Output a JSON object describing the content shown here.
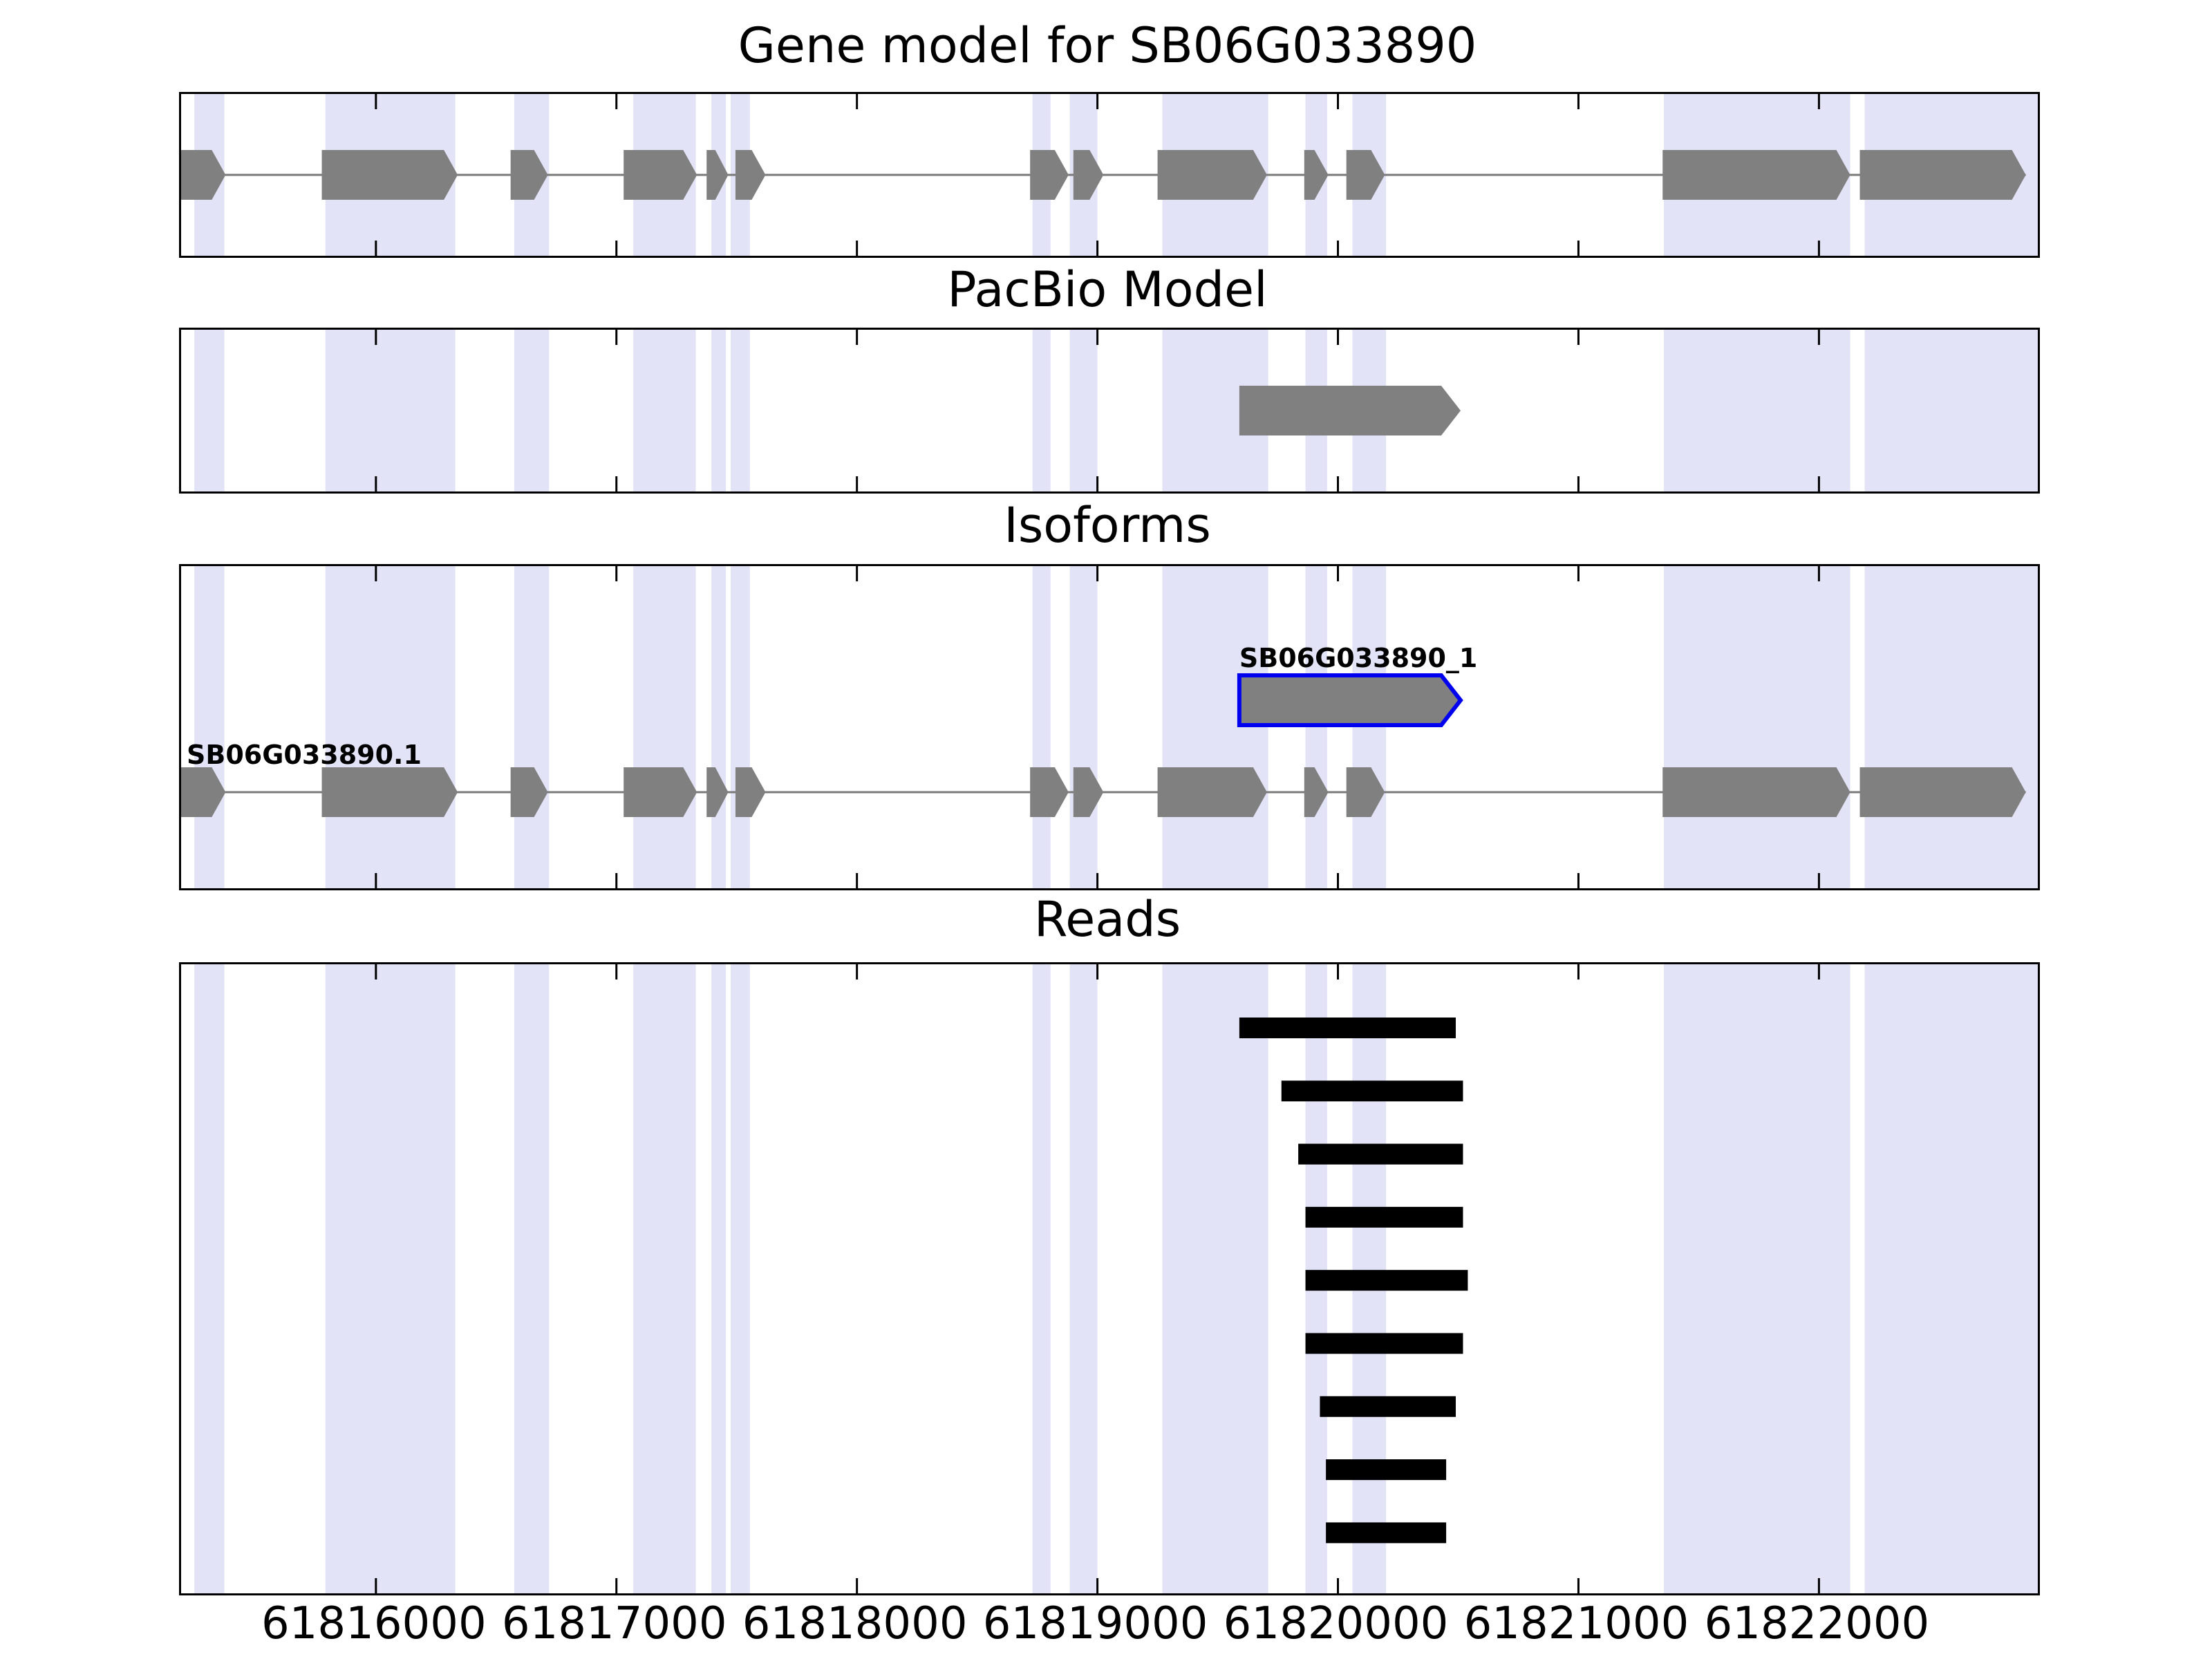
{
  "colors": {
    "feature_fill": "#808080",
    "intron_line": "#7a7a7a",
    "highlight_stroke": "#0000ee",
    "read_fill": "#000000",
    "stripe_fill": "#e3e3f7",
    "panel_border": "#000000",
    "text": "#000000"
  },
  "chart_data": {
    "type": "genome-tracks",
    "x_axis": {
      "min": 61815190,
      "max": 61822910,
      "ticks": [
        61816000,
        61817000,
        61818000,
        61819000,
        61820000,
        61821000,
        61822000
      ],
      "tick_labels": [
        "61816000",
        "61817000",
        "61818000",
        "61819000",
        "61820000",
        "61821000",
        "61822000"
      ]
    },
    "highlight_regions": [
      [
        61815245,
        61815370
      ],
      [
        61815790,
        61816330
      ],
      [
        61816575,
        61816720
      ],
      [
        61817070,
        61817330
      ],
      [
        61817395,
        61817455
      ],
      [
        61817475,
        61817555
      ],
      [
        61818730,
        61818805
      ],
      [
        61818885,
        61819000
      ],
      [
        61819270,
        61819710
      ],
      [
        61819865,
        61819955
      ],
      [
        61820060,
        61820200
      ],
      [
        61821355,
        61822130
      ],
      [
        61822190,
        61822910
      ]
    ],
    "panels": [
      {
        "id": "gene-model",
        "title": "Gene model for SB06G033890"
      },
      {
        "id": "pacbio",
        "title": "PacBio Model"
      },
      {
        "id": "isoforms",
        "title": "Isoforms"
      },
      {
        "id": "reads",
        "title": "Reads"
      }
    ],
    "gene_model": {
      "name": "SB06G033890",
      "strand": "+",
      "exons": [
        [
          61815190,
          61815375
        ],
        [
          61815775,
          61816340
        ],
        [
          61816560,
          61816715
        ],
        [
          61817030,
          61817335
        ],
        [
          61817375,
          61817465
        ],
        [
          61817495,
          61817620
        ],
        [
          61818720,
          61818880
        ],
        [
          61818900,
          61819025
        ],
        [
          61819250,
          61819705
        ],
        [
          61819860,
          61819960
        ],
        [
          61820035,
          61820195
        ],
        [
          61821350,
          61822130
        ],
        [
          61822170,
          61822860
        ]
      ]
    },
    "pacbio_model": {
      "start": 61819590,
      "end": 61820510,
      "strand": "+"
    },
    "isoforms": [
      {
        "label": "SB06G033890_1",
        "strand": "+",
        "highlighted": true,
        "exons": [
          [
            61819590,
            61820510
          ]
        ]
      },
      {
        "label": "SB06G033890.1",
        "strand": "+",
        "highlighted": false,
        "exons": [
          [
            61815190,
            61815375
          ],
          [
            61815775,
            61816340
          ],
          [
            61816560,
            61816715
          ],
          [
            61817030,
            61817335
          ],
          [
            61817375,
            61817465
          ],
          [
            61817495,
            61817620
          ],
          [
            61818720,
            61818880
          ],
          [
            61818900,
            61819025
          ],
          [
            61819250,
            61819705
          ],
          [
            61819860,
            61819960
          ],
          [
            61820035,
            61820195
          ],
          [
            61821350,
            61822130
          ],
          [
            61822170,
            61822860
          ]
        ]
      }
    ],
    "reads": [
      [
        61819590,
        61820490
      ],
      [
        61819765,
        61820520
      ],
      [
        61819835,
        61820520
      ],
      [
        61819865,
        61820520
      ],
      [
        61819865,
        61820540
      ],
      [
        61819865,
        61820520
      ],
      [
        61819925,
        61820490
      ],
      [
        61819950,
        61820450
      ],
      [
        61819950,
        61820450
      ]
    ]
  }
}
